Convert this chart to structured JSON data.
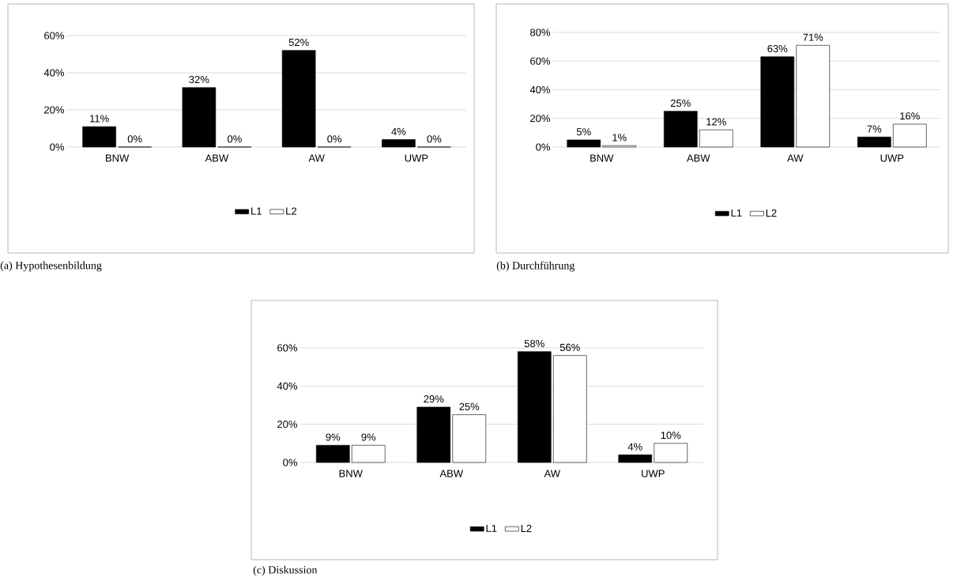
{
  "chart_data": [
    {
      "type": "bar",
      "categories": [
        "BNW",
        "ABW",
        "AW",
        "UWP"
      ],
      "series": [
        {
          "name": "L1",
          "color": "#000000",
          "values": [
            11,
            32,
            52,
            4
          ],
          "value_labels": [
            "11%",
            "32%",
            "52%",
            "4%"
          ]
        },
        {
          "name": "L2",
          "color": "#ffffff",
          "values": [
            0,
            0,
            0,
            0
          ],
          "value_labels": [
            "0%",
            "0%",
            "0%",
            "0%"
          ]
        }
      ],
      "ylim": [
        0,
        60
      ],
      "yticks": [
        {
          "value": 0,
          "label": "0%"
        },
        {
          "value": 20,
          "label": "20%"
        },
        {
          "value": 40,
          "label": "40%"
        },
        {
          "value": 60,
          "label": "60%"
        }
      ],
      "grid": "y",
      "legend": "bottom",
      "annotations": [
        "(a) Hypothesenbildung"
      ]
    },
    {
      "type": "bar",
      "categories": [
        "BNW",
        "ABW",
        "AW",
        "UWP"
      ],
      "series": [
        {
          "name": "L1",
          "color": "#000000",
          "values": [
            5,
            25,
            63,
            7
          ],
          "value_labels": [
            "5%",
            "25%",
            "63%",
            "7%"
          ]
        },
        {
          "name": "L2",
          "color": "#ffffff",
          "values": [
            1,
            12,
            71,
            16
          ],
          "value_labels": [
            "1%",
            "12%",
            "71%",
            "16%"
          ]
        }
      ],
      "ylim": [
        0,
        80
      ],
      "yticks": [
        {
          "value": 0,
          "label": "0%"
        },
        {
          "value": 20,
          "label": "20%"
        },
        {
          "value": 40,
          "label": "40%"
        },
        {
          "value": 60,
          "label": "60%"
        },
        {
          "value": 80,
          "label": "80%"
        }
      ],
      "grid": "y",
      "legend": "bottom",
      "annotations": [
        "(b) Durchführung"
      ]
    },
    {
      "type": "bar",
      "categories": [
        "BNW",
        "ABW",
        "AW",
        "UWP"
      ],
      "series": [
        {
          "name": "L1",
          "color": "#000000",
          "values": [
            9,
            29,
            58,
            4
          ],
          "value_labels": [
            "9%",
            "29%",
            "58%",
            "4%"
          ]
        },
        {
          "name": "L2",
          "color": "#ffffff",
          "values": [
            9,
            25,
            56,
            10
          ],
          "value_labels": [
            "9%",
            "25%",
            "56%",
            "10%"
          ]
        }
      ],
      "ylim": [
        0,
        60
      ],
      "yticks": [
        {
          "value": 0,
          "label": "0%"
        },
        {
          "value": 20,
          "label": "20%"
        },
        {
          "value": 40,
          "label": "40%"
        },
        {
          "value": 60,
          "label": "60%"
        }
      ],
      "grid": "y",
      "legend": "bottom",
      "annotations": [
        "(c) Diskussion"
      ]
    }
  ]
}
